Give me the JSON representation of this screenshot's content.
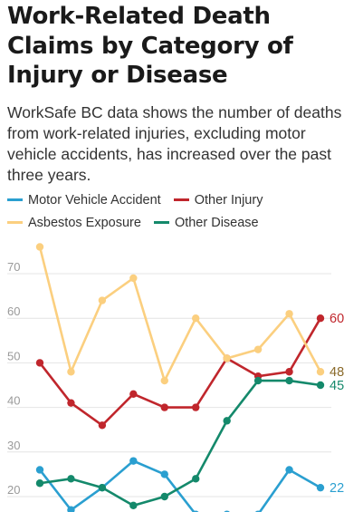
{
  "title": "Work-Related Death Claims by Category of Injury or Disease",
  "subtitle": "WorkSafe BC data shows the number of deaths from work-related injuries, excluding motor vehicle accidents, has increased over the past three years.",
  "chart_data": {
    "type": "line",
    "title": "Work-Related Death Claims by Category of Injury or Disease",
    "subtitle": "WorkSafe BC data shows the number of deaths from work-related injuries, excluding motor vehicle accidents, has increased over the past three years.",
    "legend_position": "top",
    "grid": true,
    "yticks": [
      20,
      30,
      40,
      50,
      60,
      70
    ],
    "ylim": [
      20,
      77
    ],
    "x": [
      0,
      1,
      2,
      3,
      4,
      5,
      6,
      7,
      8,
      9
    ],
    "series": [
      {
        "name": "Motor Vehicle Accident",
        "color": "#2a9fd0",
        "values": [
          26,
          17,
          22,
          28,
          25,
          16,
          16,
          16,
          26,
          22
        ],
        "end_label": "22"
      },
      {
        "name": "Other Injury",
        "color": "#c0262c",
        "values": [
          50,
          41,
          36,
          43,
          40,
          40,
          51,
          47,
          48,
          60
        ],
        "end_label": "60"
      },
      {
        "name": "Asbestos Exposure",
        "color": "#fbcf7f",
        "values": [
          76,
          48,
          64,
          69,
          46,
          60,
          51,
          53,
          61,
          48
        ],
        "end_label": "48",
        "end_label_color": "#8a6a2a"
      },
      {
        "name": "Other Disease",
        "color": "#14896b",
        "values": [
          23,
          24,
          22,
          18,
          20,
          24,
          37,
          46,
          46,
          45
        ],
        "end_label": "45"
      }
    ]
  }
}
